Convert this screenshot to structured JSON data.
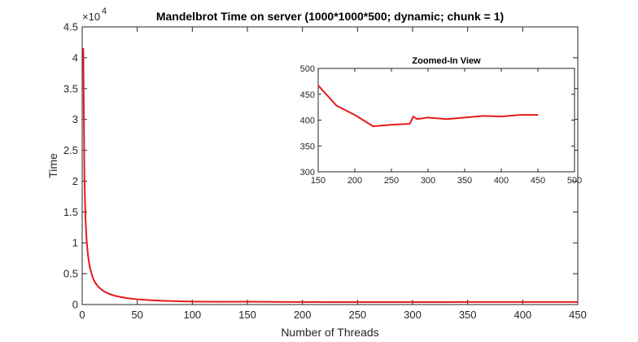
{
  "chart_data": [
    {
      "type": "line",
      "title": "Mandelbrot Time on server (1000*1000*500; dynamic; chunk = 1)",
      "xlabel": "Number of Threads",
      "ylabel": "Time",
      "y_exponent_label": "×10",
      "y_exponent_power": "4",
      "xlim": [
        0,
        450
      ],
      "ylim": [
        0,
        45000
      ],
      "xticks": [
        0,
        50,
        100,
        150,
        200,
        250,
        300,
        350,
        400,
        450
      ],
      "xtick_labels": [
        "0",
        "50",
        "100",
        "150",
        "200",
        "250",
        "300",
        "350",
        "400",
        "450"
      ],
      "yticks": [
        0,
        5000,
        10000,
        15000,
        20000,
        25000,
        30000,
        35000,
        40000,
        45000
      ],
      "ytick_labels": [
        "0",
        "0.5",
        "1",
        "1.5",
        "2",
        "2.5",
        "3",
        "3.5",
        "4",
        "4.5"
      ],
      "grid": false,
      "legend": "none",
      "series_color": "#e41a1c",
      "series": [
        {
          "x": [
            1,
            2,
            3,
            4,
            5,
            6,
            7,
            8,
            10,
            12,
            15,
            20,
            25,
            30,
            40,
            50,
            60,
            75,
            100,
            125,
            150,
            175,
            200,
            225,
            250,
            275,
            300,
            325,
            350,
            375,
            400,
            425,
            450
          ],
          "y": [
            41500,
            20800,
            14000,
            10500,
            8400,
            7000,
            6000,
            5300,
            4200,
            3500,
            2800,
            2100,
            1700,
            1400,
            1050,
            850,
            720,
            600,
            480,
            450,
            470,
            428,
            410,
            388,
            390,
            392,
            403,
            402,
            405,
            408,
            407,
            410,
            410
          ]
        }
      ]
    },
    {
      "type": "line",
      "title": "Zoomed-In View",
      "xlabel": "",
      "ylabel": "",
      "xlim": [
        150,
        500
      ],
      "ylim": [
        300,
        500
      ],
      "xticks": [
        150,
        200,
        250,
        300,
        350,
        400,
        450,
        500
      ],
      "xtick_labels": [
        "150",
        "200",
        "250",
        "300",
        "350",
        "400",
        "450",
        "500"
      ],
      "yticks": [
        300,
        350,
        400,
        450,
        500
      ],
      "ytick_labels": [
        "300",
        "350",
        "400",
        "450",
        "500"
      ],
      "grid": false,
      "legend": "none",
      "series_color": "#e41a1c",
      "series": [
        {
          "x": [
            150,
            175,
            200,
            225,
            250,
            275,
            280,
            285,
            290,
            300,
            325,
            350,
            375,
            400,
            425,
            450
          ],
          "y": [
            467,
            428,
            410,
            388,
            391,
            393,
            407,
            402,
            403,
            405,
            402,
            405,
            408,
            407,
            410,
            410
          ]
        }
      ]
    }
  ]
}
